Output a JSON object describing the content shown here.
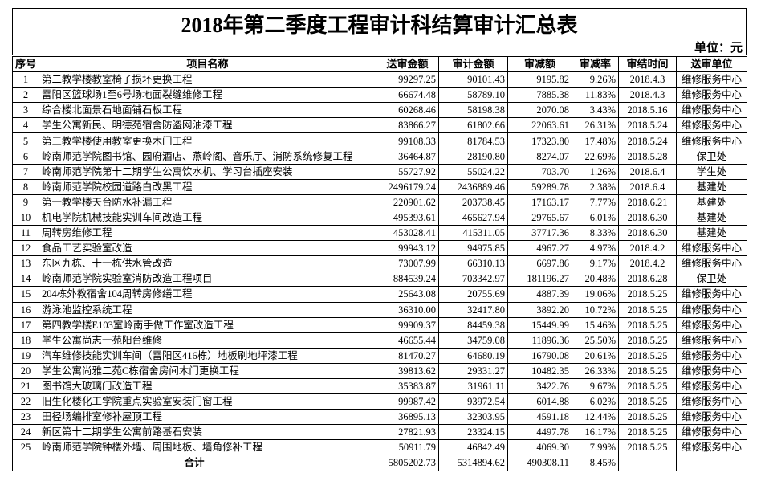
{
  "title": "2018年第二季度工程审计科结算审计汇总表",
  "unit": "单位：元",
  "table": {
    "header": [
      "序号",
      "项目名称",
      "送审金额",
      "审计金额",
      "审减额",
      "审减率",
      "审结时间",
      "送审单位"
    ],
    "rows": [
      [
        "1",
        "第二教学楼教室椅子损坏更换工程",
        "99297.25",
        "90101.43",
        "9195.82",
        "9.26%",
        "2018.4.3",
        "维修服务中心"
      ],
      [
        "2",
        "雷阳区篮球场1至6号场地面裂缝维修工程",
        "66674.48",
        "58789.10",
        "7885.38",
        "11.83%",
        "2018.4.3",
        "维修服务中心"
      ],
      [
        "3",
        "综合楼北面景石地面铺石板工程",
        "60268.46",
        "58198.38",
        "2070.08",
        "3.43%",
        "2018.5.16",
        "维修服务中心"
      ],
      [
        "4",
        "学生公寓新民、明德苑宿舍防盗网油漆工程",
        "83866.27",
        "61802.66",
        "22063.61",
        "26.31%",
        "2018.5.24",
        "维修服务中心"
      ],
      [
        "5",
        "第三教学楼使用教室更换木门工程",
        "99108.33",
        "81784.53",
        "17323.80",
        "17.48%",
        "2018.5.24",
        "维修服务中心"
      ],
      [
        "6",
        "岭南师范学院图书馆、园府酒店、燕岭阁、音乐厅、消防系统修复工程",
        "36464.87",
        "28190.80",
        "8274.07",
        "22.69%",
        "2018.5.28",
        "保卫处"
      ],
      [
        "7",
        "岭南师范学院第十二期学生公寓饮水机、学习台插座安装",
        "55727.92",
        "55024.22",
        "703.70",
        "1.26%",
        "2018.6.4",
        "学生处"
      ],
      [
        "8",
        "岭南师范学院校园道路白改黑工程",
        "2496179.24",
        "2436889.46",
        "59289.78",
        "2.38%",
        "2018.6.4",
        "基建处"
      ],
      [
        "9",
        "第一教学楼天台防水补漏工程",
        "220901.62",
        "203738.45",
        "17163.17",
        "7.77%",
        "2018.6.21",
        "基建处"
      ],
      [
        "10",
        "机电学院机械技能实训车间改造工程",
        "495393.61",
        "465627.94",
        "29765.67",
        "6.01%",
        "2018.6.30",
        "基建处"
      ],
      [
        "11",
        "周转房维修工程",
        "453028.41",
        "415311.05",
        "37717.36",
        "8.33%",
        "2018.6.30",
        "基建处"
      ],
      [
        "12",
        "食品工艺实验室改造",
        "99943.12",
        "94975.85",
        "4967.27",
        "4.97%",
        "2018.4.2",
        "维修服务中心"
      ],
      [
        "13",
        "东区九栋、十一栋供水管改造",
        "73007.99",
        "66310.13",
        "6697.86",
        "9.17%",
        "2018.4.2",
        "维修服务中心"
      ],
      [
        "14",
        "岭南师范学院实验室消防改造工程项目",
        "884539.24",
        "703342.97",
        "181196.27",
        "20.48%",
        "2018.6.28",
        "保卫处"
      ],
      [
        "15",
        "204栋外教宿舍104周转房修缮工程",
        "25643.08",
        "20755.69",
        "4887.39",
        "19.06%",
        "2018.5.25",
        "维修服务中心"
      ],
      [
        "16",
        "游泳池监控系统工程",
        "36310.00",
        "32417.80",
        "3892.20",
        "10.72%",
        "2018.5.25",
        "维修服务中心"
      ],
      [
        "17",
        "第四教学楼E103室岭南手做工作室改造工程",
        "99909.37",
        "84459.38",
        "15449.99",
        "15.46%",
        "2018.5.25",
        "维修服务中心"
      ],
      [
        "18",
        "学生公寓尚志一苑阳台维修",
        "46655.44",
        "34759.08",
        "11896.36",
        "25.50%",
        "2018.5.25",
        "维修服务中心"
      ],
      [
        "19",
        "汽车维修技能实训车间（雷阳区416栋）地板刷地坪漆工程",
        "81470.27",
        "64680.19",
        "16790.08",
        "20.61%",
        "2018.5.25",
        "维修服务中心"
      ],
      [
        "20",
        "学生公寓尚雅二苑C栋宿舍房间木门更换工程",
        "39813.62",
        "29331.27",
        "10482.35",
        "26.33%",
        "2018.5.25",
        "维修服务中心"
      ],
      [
        "21",
        "图书馆大玻璃门改造工程",
        "35383.87",
        "31961.11",
        "3422.76",
        "9.67%",
        "2018.5.25",
        "维修服务中心"
      ],
      [
        "22",
        "旧生化楼化工学院重点实验室安装门窗工程",
        "99987.42",
        "93972.54",
        "6014.88",
        "6.02%",
        "2018.5.25",
        "维修服务中心"
      ],
      [
        "23",
        "田径场编排室修补屋顶工程",
        "36895.13",
        "32303.95",
        "4591.18",
        "12.44%",
        "2018.5.25",
        "维修服务中心"
      ],
      [
        "24",
        "新区第十二期学生公寓前路基石安装",
        "27821.93",
        "23324.15",
        "4497.78",
        "16.17%",
        "2018.5.25",
        "维修服务中心"
      ],
      [
        "25",
        "岭南师范学院钟楼外墙、周围地板、墙角修补工程",
        "50911.79",
        "46842.49",
        "4069.30",
        "7.99%",
        "2018.5.25",
        "维修服务中心"
      ]
    ],
    "total": {
      "label": "合计",
      "values": [
        "5805202.73",
        "5314894.62",
        "490308.11",
        "8.45%"
      ]
    }
  }
}
